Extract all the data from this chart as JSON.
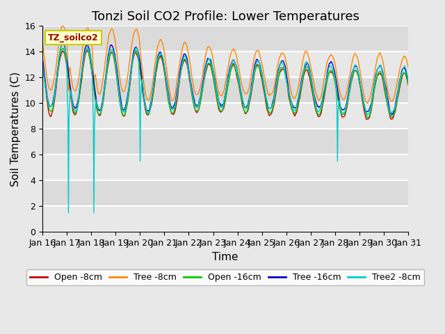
{
  "title": "Tonzi Soil CO2 Profile: Lower Temperatures",
  "xlabel": "Time",
  "ylabel": "Soil Temperatures (C)",
  "ylim": [
    0,
    16
  ],
  "yticks": [
    0,
    2,
    4,
    6,
    8,
    10,
    12,
    14,
    16
  ],
  "x_labels": [
    "Jan 16",
    "Jan 17",
    "Jan 18",
    "Jan 19",
    "Jan 20",
    "Jan 21",
    "Jan 22",
    "Jan 23",
    "Jan 24",
    "Jan 25",
    "Jan 26",
    "Jan 27",
    "Jan 28",
    "Jan 29",
    "Jan 30",
    "Jan 31"
  ],
  "series_labels": [
    "Open -8cm",
    "Tree -8cm",
    "Open -16cm",
    "Tree -16cm",
    "Tree2 -8cm"
  ],
  "series_colors": [
    "#cc0000",
    "#ff8800",
    "#00cc00",
    "#0000cc",
    "#00cccc"
  ],
  "annotation_text": "TZ_soilco2",
  "annotation_color": "#990000",
  "annotation_bg": "#ffffcc",
  "annotation_edge": "#cccc00",
  "background_color": "#e8e8e8",
  "title_fontsize": 13,
  "axis_label_fontsize": 11,
  "tick_fontsize": 9,
  "legend_fontsize": 9
}
